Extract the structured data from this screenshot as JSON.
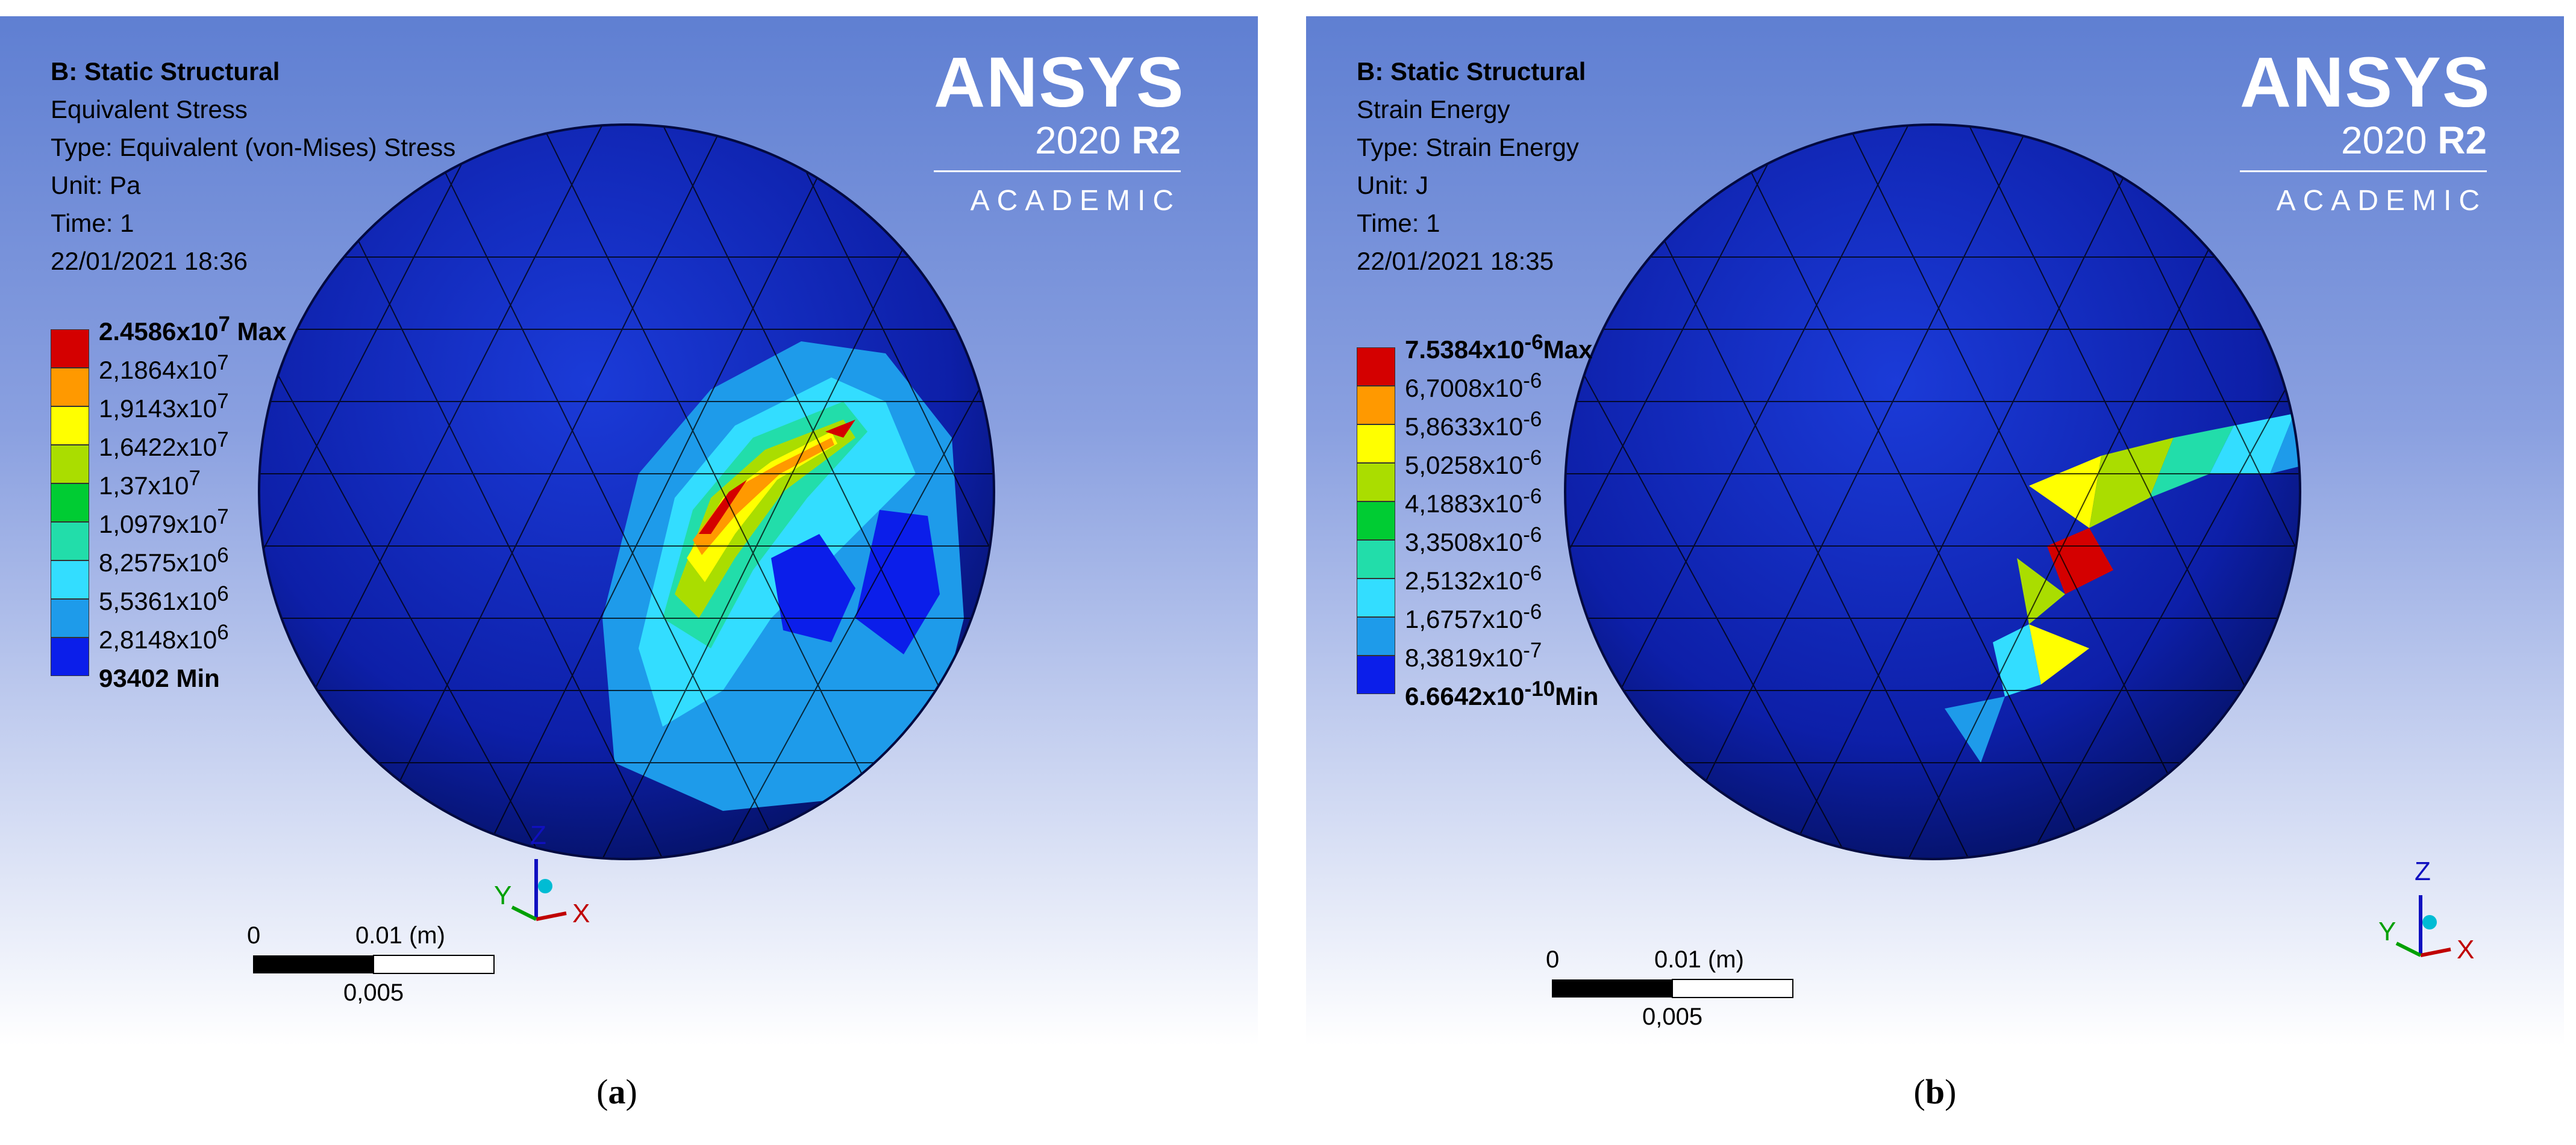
{
  "panels": [
    {
      "caption": "a",
      "header": {
        "system": "B: Static Structural",
        "result": "Equivalent Stress",
        "type": "Type: Equivalent (von-Mises) Stress",
        "unit": "Unit: Pa",
        "time": "Time: 1",
        "timestamp": "22/01/2021 18:36"
      },
      "legend": {
        "max": {
          "mantissa": "2.4586x10",
          "exp": "7",
          "suffix": " Max"
        },
        "min": {
          "mantissa": "93402",
          "exp": "",
          "suffix": " Min"
        },
        "levels": [
          {
            "mantissa": "2,1864x10",
            "exp": "7"
          },
          {
            "mantissa": "1,9143x10",
            "exp": "7"
          },
          {
            "mantissa": "1,6422x10",
            "exp": "7"
          },
          {
            "mantissa": "1,37x10",
            "exp": "7"
          },
          {
            "mantissa": "1,0979x10",
            "exp": "7"
          },
          {
            "mantissa": "8,2575x10",
            "exp": "6"
          },
          {
            "mantissa": "5,5361x10",
            "exp": "6"
          },
          {
            "mantissa": "2,8148x10",
            "exp": "6"
          }
        ]
      },
      "scale": {
        "zero": "0",
        "end": "0.01 (m)",
        "mid": "0,005"
      },
      "axes": {
        "x": "X",
        "y": "Y",
        "z": "Z"
      }
    },
    {
      "caption": "b",
      "header": {
        "system": "B: Static Structural",
        "result": "Strain Energy",
        "type": "Type: Strain Energy",
        "unit": "Unit: J",
        "time": "Time: 1",
        "timestamp": "22/01/2021 18:35"
      },
      "legend": {
        "max": {
          "mantissa": "7.5384x10",
          "exp": "-6",
          "suffix": "Max"
        },
        "min": {
          "mantissa": "6.6642x10",
          "exp": "-10",
          "suffix": "Min"
        },
        "levels": [
          {
            "mantissa": "6,7008x10",
            "exp": "-6"
          },
          {
            "mantissa": "5,8633x10",
            "exp": "-6"
          },
          {
            "mantissa": "5,0258x10",
            "exp": "-6"
          },
          {
            "mantissa": "4,1883x10",
            "exp": "-6"
          },
          {
            "mantissa": "3,3508x10",
            "exp": "-6"
          },
          {
            "mantissa": "2,5132x10",
            "exp": "-6"
          },
          {
            "mantissa": "1,6757x10",
            "exp": "-6"
          },
          {
            "mantissa": "8,3819x10",
            "exp": "-7"
          }
        ]
      },
      "scale": {
        "zero": "0",
        "end": "0.01 (m)",
        "mid": "0,005"
      },
      "axes": {
        "x": "X",
        "y": "Y",
        "z": "Z"
      }
    }
  ],
  "brand": {
    "name": "ANSYS",
    "version": "2020",
    "release": "R2",
    "edition": "ACADEMIC"
  },
  "colors": {
    "band_colors": [
      "#d40000",
      "#ff9900",
      "#ffff00",
      "#aadd00",
      "#00cc33",
      "#22ddaa",
      "#33ddff",
      "#1e9bea",
      "#0b1eea"
    ],
    "sphere": "#0e2aa8"
  }
}
